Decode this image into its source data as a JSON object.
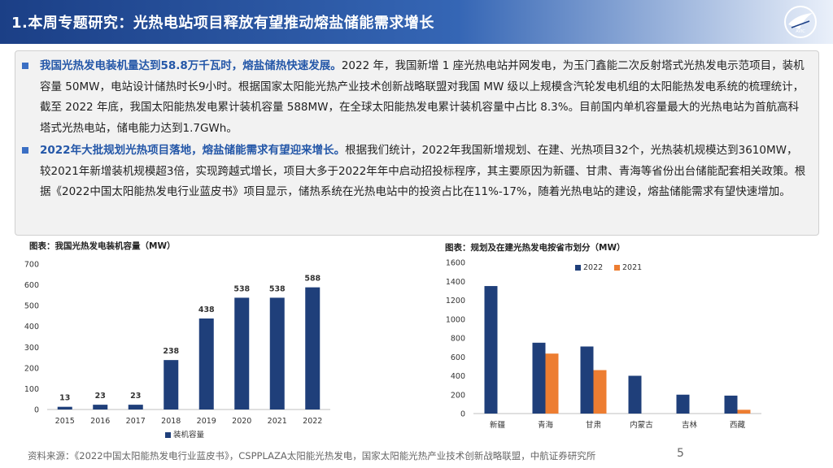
{
  "header": {
    "title": "1.本周专题研究：光热电站项目释放有望推动熔盐储能需求增长"
  },
  "paragraphs": [
    {
      "lead": "我国光热发电装机量达到58.8万千瓦时，熔盐储热快速发展。",
      "body": "2022 年，我国新增 1 座光热电站并网发电，为玉门鑫能二次反射塔式光热发电示范项目，装机容量 50MW，电站设计储热时长9小时。根据国家太阳能光热产业技术创新战略联盟对我国 MW 级以上规模含汽轮发电机组的太阳能热发电系统的梳理统计，截至 2022 年底，我国太阳能热发电累计装机容量 588MW，在全球太阳能热发电累计装机容量中占比 8.3%。目前国内单机容量最大的光热电站为首航高科塔式光热电站，储电能力达到1.7GWh。"
    },
    {
      "lead": "2022年大批规划光热项目落地，熔盐储能需求有望迎来增长。",
      "body": "根据我们统计，2022年我国新增规划、在建、光热项目32个，光热装机规模达到3610MW，较2021年新增装机规模超3倍，实现跨越式增长，项目大多于2022年年中启动招投标程序，其主要原因为新疆、甘肃、青海等省份出台储能配套相关政策。根据《2022中国太阳能热发电行业蓝皮书》项目显示，储热系统在光热电站中的投资占比在11%-17%，随着光热电站的建设，熔盐储能需求有望快速增加。"
    }
  ],
  "chart_left_title": "图表：我国光热发电装机容量（MW）",
  "chart_right_title": "图表：规划及在建光热发电按省市划分（MW）",
  "chart_data": [
    {
      "type": "bar",
      "title": "图表：我国光热发电装机容量（MW）",
      "categories": [
        "2015",
        "2016",
        "2017",
        "2018",
        "2019",
        "2020",
        "2021",
        "2022"
      ],
      "series": [
        {
          "name": "装机容量",
          "values": [
            13,
            23,
            23,
            238,
            438,
            538,
            538,
            588
          ],
          "color": "#1f3f7a"
        }
      ],
      "ylim": [
        0,
        700
      ],
      "yticks": [
        0,
        100,
        200,
        300,
        400,
        500,
        600,
        700
      ],
      "data_labels": true,
      "legend": "bottom"
    },
    {
      "type": "bar",
      "title": "图表：规划及在建光热发电按省市划分（MW）",
      "categories": [
        "新疆",
        "青海",
        "甘肃",
        "内蒙古",
        "吉林",
        "西藏"
      ],
      "series": [
        {
          "name": "2022",
          "values": [
            1350,
            750,
            710,
            400,
            200,
            190
          ],
          "color": "#1f3f7a"
        },
        {
          "name": "2021",
          "values": [
            0,
            635,
            460,
            0,
            0,
            40
          ],
          "color": "#ed7d31"
        }
      ],
      "ylim": [
        0,
        1600
      ],
      "yticks": [
        0,
        200,
        400,
        600,
        800,
        1000,
        1200,
        1400,
        1600
      ],
      "legend": "top"
    }
  ],
  "footer": {
    "source": "资料来源：《2022中国太阳能热发电行业蓝皮书》，CSPPLAZA太阳能光热发电，国家太阳能光热产业技术创新战略联盟，中航证券研究所",
    "page": "5"
  }
}
